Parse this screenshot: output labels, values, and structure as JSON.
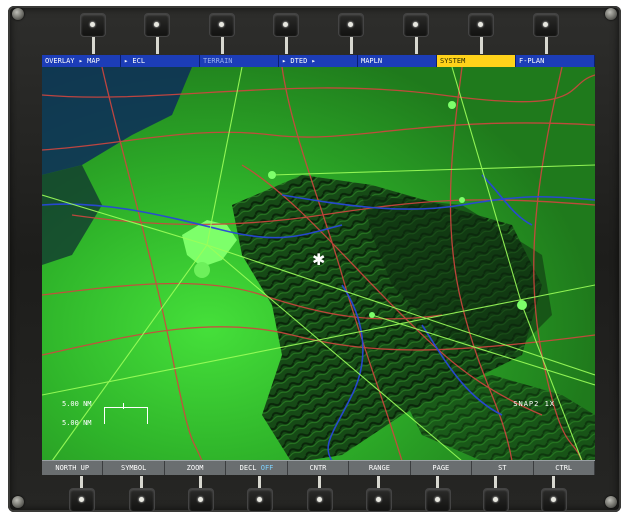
{
  "display": {
    "top_keys": [
      {
        "label": "OVERLAY ▸ MAP",
        "state": "normal"
      },
      {
        "label": "▸ ECL",
        "state": "normal"
      },
      {
        "label": "TERRAIN",
        "state": "dim"
      },
      {
        "label": "▸ DTED ▸",
        "state": "normal"
      },
      {
        "label": "MAPLN",
        "state": "normal"
      },
      {
        "label": "SYSTEM",
        "state": "active"
      },
      {
        "label": "F-PLAN",
        "state": "normal"
      }
    ],
    "bottom_keys": [
      {
        "label": "NORTH UP"
      },
      {
        "label": "SYMBOL"
      },
      {
        "label": "ZOOM"
      },
      {
        "label": "DECL",
        "suffix": "OFF"
      },
      {
        "label": "CNTR"
      },
      {
        "label": "RANGE"
      },
      {
        "label": "PAGE"
      },
      {
        "label": "ST"
      },
      {
        "label": "CTRL"
      }
    ],
    "scale": {
      "top": "5.00 NM",
      "bottom": "5.00 NM"
    },
    "mode_label": "SNAP2  1X",
    "aircraft_symbol": "✱"
  },
  "colors": {
    "topbar": "#1c3db8",
    "active_key": "#ffd21a",
    "terrain_low": "#35c92c",
    "terrain_high": "#0f3a10",
    "roads": "#d0463f",
    "rivers": "#2848d8",
    "airways": "#9cff5a"
  }
}
